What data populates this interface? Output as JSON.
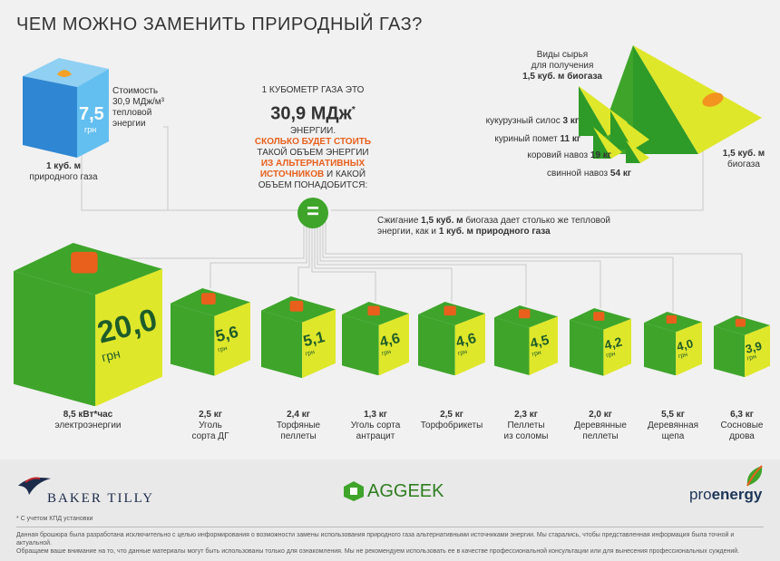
{
  "title": "ЧЕМ МОЖНО ЗАМЕНИТЬ ПРИРОДНЫЙ ГАЗ?",
  "gas_cube": {
    "price": "7,5",
    "unit": "грн",
    "cost_line1": "Стоимость",
    "cost_line2": "30,9 МДж/м³",
    "cost_line3": "тепловой",
    "cost_line4": "энергии",
    "label_amount": "1 куб. м",
    "label_name": "природного газа"
  },
  "center": {
    "line1": "1 КУБОМЕТР ГАЗА ЭТО",
    "big": "30,9 МДж",
    "star": "*",
    "line2": "ЭНЕРГИИ.",
    "orange1": "СКОЛЬКО БУДЕТ СТОИТЬ",
    "line3": "ТАКОЙ ОБЪЕМ ЭНЕРГИИ",
    "orange2": "ИЗ АЛЬТЕРНАТИВНЫХ",
    "orange3": "ИСТОЧНИКОВ",
    "line4": " И КАКОЙ",
    "line5": "ОБЪЕМ ПОНАДОБИТСЯ:",
    "equals": "="
  },
  "biogas": {
    "header1": "Виды сырья",
    "header2": "для получения",
    "header3": "1,5 куб. м биогаза",
    "items": [
      {
        "name": "кукурузный силос",
        "amount": "3 кг"
      },
      {
        "name": "куриный помет",
        "amount": "11 кг"
      },
      {
        "name": "коровий навоз",
        "amount": "19 кг"
      },
      {
        "name": "свинной навоз",
        "amount": "54 кг"
      }
    ],
    "result1": "1,5 куб. м",
    "result2": "биогаза",
    "note_line1_a": "Сжигание ",
    "note_line1_b": "1,5 куб. м",
    "note_line1_c": " биогаза дает столько же тепловой",
    "note_line2_a": "энергии, как и ",
    "note_line2_b": "1 куб. м природного газа"
  },
  "alternatives": [
    {
      "price": "20,0",
      "unit": "грн",
      "amount": "8,5 кВт*час",
      "name": "электроэнергии",
      "name2": "",
      "icon": "plug-icon"
    },
    {
      "price": "5,6",
      "unit": "грн",
      "amount": "2,5 кг",
      "name": "Уголь",
      "name2": "сорта ДГ",
      "icon": "coal-cart-icon"
    },
    {
      "price": "5,1",
      "unit": "грн",
      "amount": "2,4 кг",
      "name": "Торфяные",
      "name2": "пеллеты",
      "icon": "peat-icon"
    },
    {
      "price": "4,6",
      "unit": "грн",
      "amount": "1,3 кг",
      "name": "Уголь сорта",
      "name2": "антрацит",
      "icon": "coal-cart-icon"
    },
    {
      "price": "4,6",
      "unit": "грн",
      "amount": "2,5 кг",
      "name": "Торфобрикеты",
      "name2": "",
      "icon": "briquette-icon"
    },
    {
      "price": "4,5",
      "unit": "грн",
      "amount": "2,3 кг",
      "name": "Пеллеты",
      "name2": "из соломы",
      "icon": "straw-icon"
    },
    {
      "price": "4,2",
      "unit": "грн",
      "amount": "2,0 кг",
      "name": "Деревянные",
      "name2": "пеллеты",
      "icon": "bucket-icon"
    },
    {
      "price": "4,0",
      "unit": "грн",
      "amount": "5,5 кг",
      "name": "Деревянная",
      "name2": "щепа",
      "icon": "chips-icon"
    },
    {
      "price": "3,9",
      "unit": "грн",
      "amount": "6,3 кг",
      "name": "Сосновые",
      "name2": "дрова",
      "icon": "logs-icon"
    }
  ],
  "footer": {
    "logo_left": "BAKER TILLY",
    "logo_center": "AGGEEK",
    "logo_right_a": "pro",
    "logo_right_b": "energy",
    "footnote": "* С учетом КПД установки",
    "disclaimer1": "Данная брошюра была разработана исключительно с целью информирования о возможности замены использования природного газа альтернативными источниками энергии. Мы старались, чтобы представленная информация была точной и актуальной.",
    "disclaimer2": "Обращаем ваше внимание на то, что данные материалы могут быть использованы только для ознакомления. Мы не рекомендуем использовать ее в качестве профессиональной консультации или для вынесения профессиональных суждений."
  },
  "colors": {
    "green": "#3ea52a",
    "dark_green": "#2e7d1f",
    "yellow": "#dfe72a",
    "blue": "#3fa8e6",
    "orange": "#e8601c"
  }
}
